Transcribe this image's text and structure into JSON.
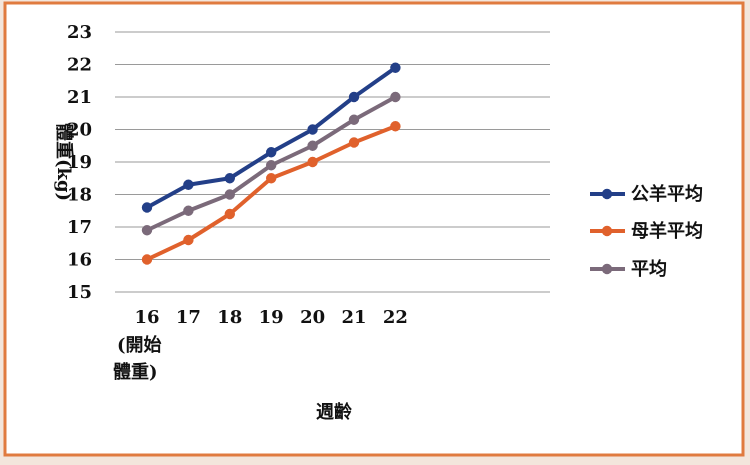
{
  "colors": {
    "panel_border": "#e07b3f",
    "panel_bg": "#ffffff",
    "grid": "#9a9a9a",
    "text": "#111111"
  },
  "chart_data": {
    "type": "line",
    "title": "",
    "xlabel": "週齡",
    "ylabel": "體重(kg)",
    "categories": [
      "16",
      "17",
      "18",
      "19",
      "20",
      "21",
      "22"
    ],
    "first_category_note": "(開始\n體重)",
    "ylim": [
      15,
      23
    ],
    "yticks": [
      15,
      16,
      17,
      18,
      19,
      20,
      21,
      22,
      23
    ],
    "grid": true,
    "legend_position": "right",
    "series": [
      {
        "name": "公羊平均",
        "color": "#233f88",
        "values": [
          17.6,
          18.3,
          18.5,
          19.3,
          20.0,
          21.0,
          21.9
        ]
      },
      {
        "name": "母羊平均",
        "color": "#e0612c",
        "values": [
          16.0,
          16.6,
          17.4,
          18.5,
          19.0,
          19.6,
          20.1
        ]
      },
      {
        "name": "平均",
        "color": "#7b6a7a",
        "values": [
          16.9,
          17.5,
          18.0,
          18.9,
          19.5,
          20.3,
          21.0
        ]
      }
    ]
  }
}
